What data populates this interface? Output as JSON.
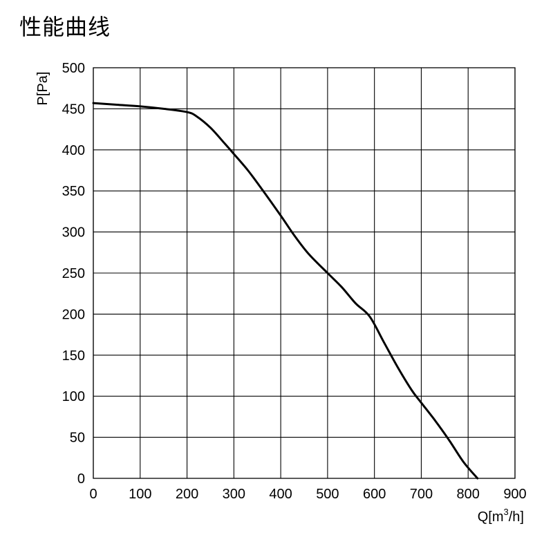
{
  "page": {
    "title": "性能曲线"
  },
  "chart_data": {
    "type": "line",
    "title": "",
    "xlabel": "Q[m³/h]",
    "xlabel_main": "Q[m",
    "xlabel_sup": "3",
    "xlabel_tail": "/h]",
    "ylabel": "P[Pa]",
    "xlim": [
      0,
      900
    ],
    "ylim": [
      0,
      500
    ],
    "x_ticks": [
      0,
      100,
      200,
      300,
      400,
      500,
      600,
      700,
      800,
      900
    ],
    "y_ticks": [
      0,
      50,
      100,
      150,
      200,
      250,
      300,
      350,
      400,
      450,
      500
    ],
    "grid": true,
    "series": [
      {
        "color": "#000000",
        "x": [
          0,
          50,
          100,
          150,
          200,
          220,
          250,
          280,
          300,
          330,
          360,
          400,
          430,
          460,
          500,
          530,
          560,
          590,
          620,
          650,
          680,
          700,
          730,
          760,
          790,
          820
        ],
        "y": [
          457,
          455,
          453,
          450,
          446,
          441,
          427,
          408,
          395,
          375,
          352,
          320,
          295,
          273,
          250,
          233,
          213,
          197,
          166,
          135,
          107,
          92,
          70,
          46,
          20,
          0
        ]
      }
    ]
  }
}
